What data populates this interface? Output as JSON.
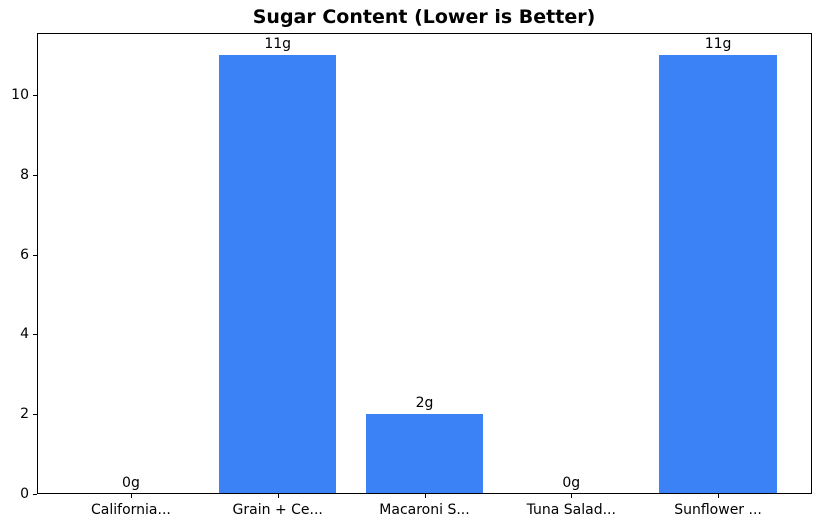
{
  "chart_data": {
    "type": "bar",
    "title": "Sugar Content (Lower is Better)",
    "categories": [
      "California...",
      "Grain + Ce...",
      "Macaroni S...",
      "Tuna Salad...",
      "Sunflower ..."
    ],
    "values": [
      0,
      11,
      2,
      0,
      11
    ],
    "bar_labels": [
      "0g",
      "11g",
      "2g",
      "0g",
      "11g"
    ],
    "yticks": [
      0,
      2,
      4,
      6,
      8,
      10
    ],
    "ylim": [
      0,
      11.55
    ],
    "xlabel": "",
    "ylabel": "",
    "bar_color": "#3b82f6",
    "text_color": "#000000",
    "background_color": "#ffffff",
    "bar_width_fraction": 0.8,
    "x_margin": 0.64,
    "grid": false,
    "legend_position": "none"
  }
}
